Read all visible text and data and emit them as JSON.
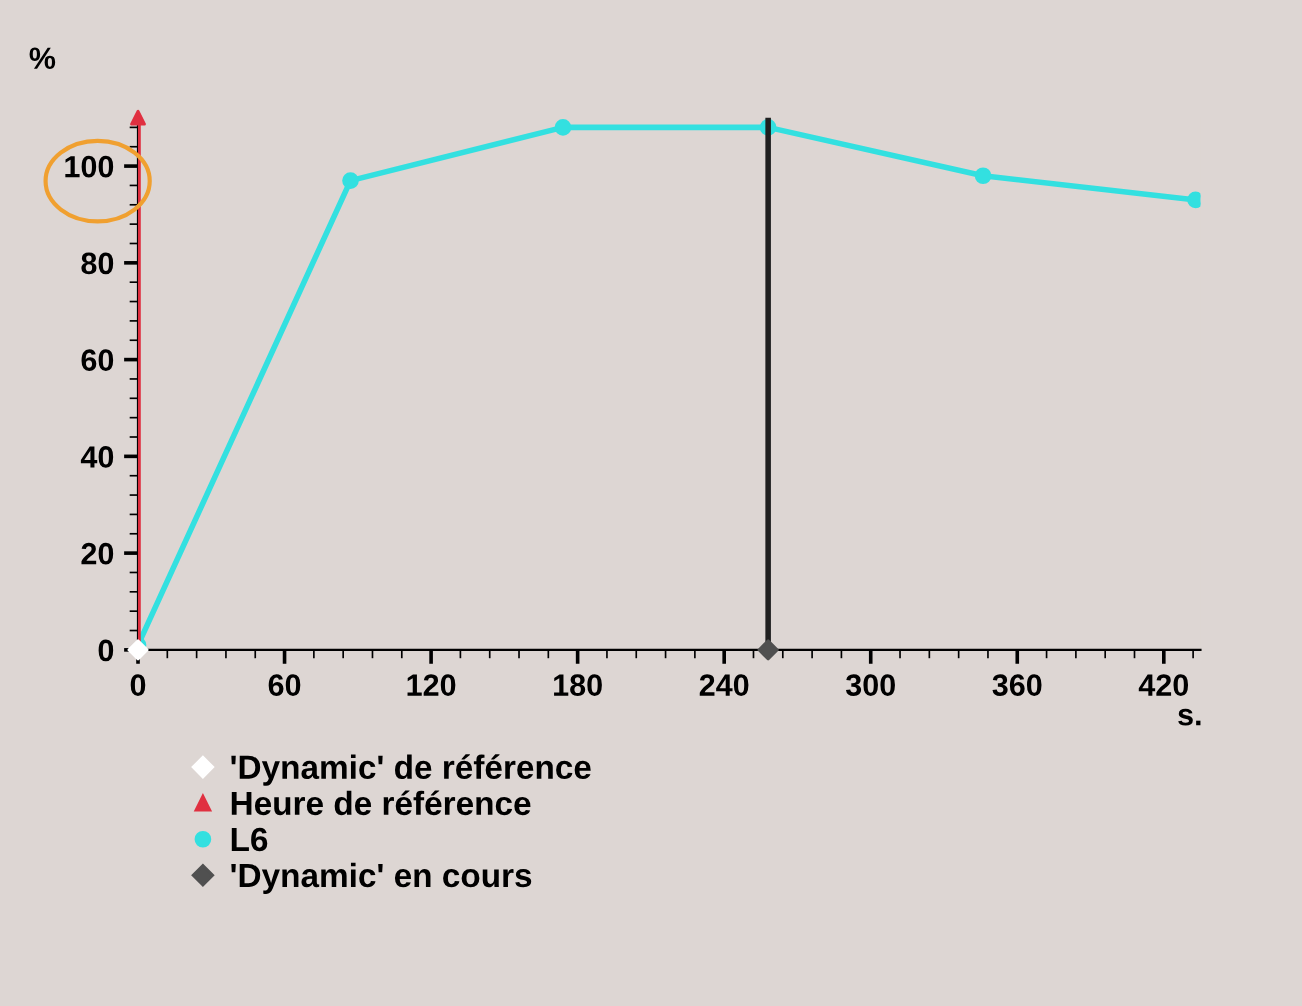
{
  "chart_data": {
    "type": "line",
    "ylabel": "%",
    "xlabel": "s.",
    "series": [
      {
        "name": "'Dynamic' de référence",
        "type": "scatter",
        "color": "#ffffff",
        "marker": "diamond",
        "x": [
          0
        ],
        "values": [
          0
        ]
      },
      {
        "name": "Heure de référence",
        "type": "scatter",
        "color": "#e03040",
        "marker": "triangle",
        "x": [
          0
        ],
        "values": [
          110
        ]
      },
      {
        "name": "L6",
        "color": "#33e0e0",
        "marker": "circle",
        "x": [
          0,
          87,
          174,
          258,
          346,
          433
        ],
        "values": [
          1,
          97,
          108,
          108,
          98,
          93
        ]
      },
      {
        "name": "'Dynamic' en cours",
        "type": "scatter",
        "color": "#505050",
        "marker": "diamond",
        "x": [
          258
        ],
        "values": [
          0
        ]
      }
    ],
    "ref_lines": [
      {
        "axis": "x",
        "value": 0,
        "color": "#e03040"
      },
      {
        "axis": "x",
        "value": 258,
        "color": "#202020"
      }
    ],
    "xlim": [
      0,
      435
    ],
    "xticks": [
      0,
      60,
      120,
      180,
      240,
      300,
      360,
      420
    ],
    "ylim": [
      0,
      110
    ],
    "yticks": [
      0,
      20,
      40,
      60,
      80,
      100
    ],
    "grid": false,
    "legend": "bottom left"
  }
}
